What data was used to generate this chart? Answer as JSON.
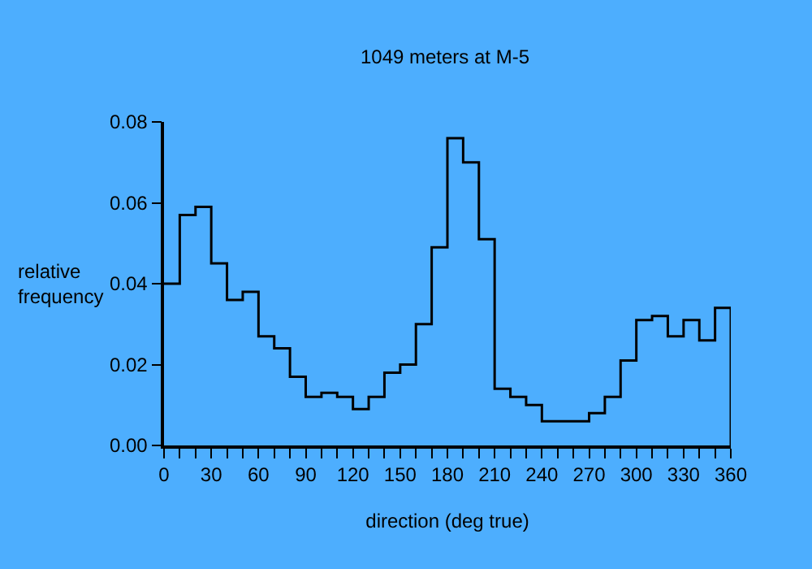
{
  "chart_data": {
    "type": "histogram",
    "title": "1049 meters at M-5",
    "xlabel": "direction (deg true)",
    "ylabel": "relative\nfrequency",
    "bins": [
      0,
      10,
      20,
      30,
      40,
      50,
      60,
      70,
      80,
      90,
      100,
      110,
      120,
      130,
      140,
      150,
      160,
      170,
      180,
      190,
      200,
      210,
      220,
      230,
      240,
      250,
      260,
      270,
      280,
      290,
      300,
      310,
      320,
      330,
      340,
      350,
      360
    ],
    "values": [
      0.04,
      0.057,
      0.059,
      0.045,
      0.036,
      0.038,
      0.027,
      0.024,
      0.017,
      0.012,
      0.013,
      0.012,
      0.009,
      0.012,
      0.018,
      0.02,
      0.03,
      0.049,
      0.076,
      0.07,
      0.051,
      0.014,
      0.012,
      0.01,
      0.006,
      0.006,
      0.006,
      0.008,
      0.012,
      0.021,
      0.031,
      0.032,
      0.027,
      0.031,
      0.026,
      0.034
    ],
    "color": "#000000",
    "xlim": [
      0,
      360
    ],
    "xticks": [
      0,
      {
        "value": 10,
        "label": null
      },
      {
        "value": 20,
        "label": null
      },
      30,
      {
        "value": 40,
        "label": null
      },
      {
        "value": 50,
        "label": null
      },
      60,
      {
        "value": 70,
        "label": null
      },
      {
        "value": 80,
        "label": null
      },
      90,
      {
        "value": 100,
        "label": null
      },
      {
        "value": 110,
        "label": null
      },
      120,
      {
        "value": 130,
        "label": null
      },
      {
        "value": 140,
        "label": null
      },
      150,
      {
        "value": 160,
        "label": null
      },
      {
        "value": 170,
        "label": null
      },
      180,
      {
        "value": 190,
        "label": null
      },
      {
        "value": 200,
        "label": null
      },
      210,
      {
        "value": 220,
        "label": null
      },
      {
        "value": 230,
        "label": null
      },
      240,
      {
        "value": 250,
        "label": null
      },
      {
        "value": 260,
        "label": null
      },
      270,
      {
        "value": 280,
        "label": null
      },
      {
        "value": 290,
        "label": null
      },
      300,
      {
        "value": 310,
        "label": null
      },
      {
        "value": 320,
        "label": null
      },
      330,
      {
        "value": 340,
        "label": null
      },
      {
        "value": 350,
        "label": null
      },
      360
    ],
    "ylim": [
      0,
      0.08
    ],
    "yticks": [
      {
        "value": 0,
        "label": "0.00"
      },
      {
        "value": 0.02,
        "label": "0.02"
      },
      {
        "value": 0.04,
        "label": "0.04"
      },
      {
        "value": 0.06,
        "label": "0.06"
      },
      {
        "value": 0.08,
        "label": "0.08"
      }
    ],
    "grid": false
  }
}
